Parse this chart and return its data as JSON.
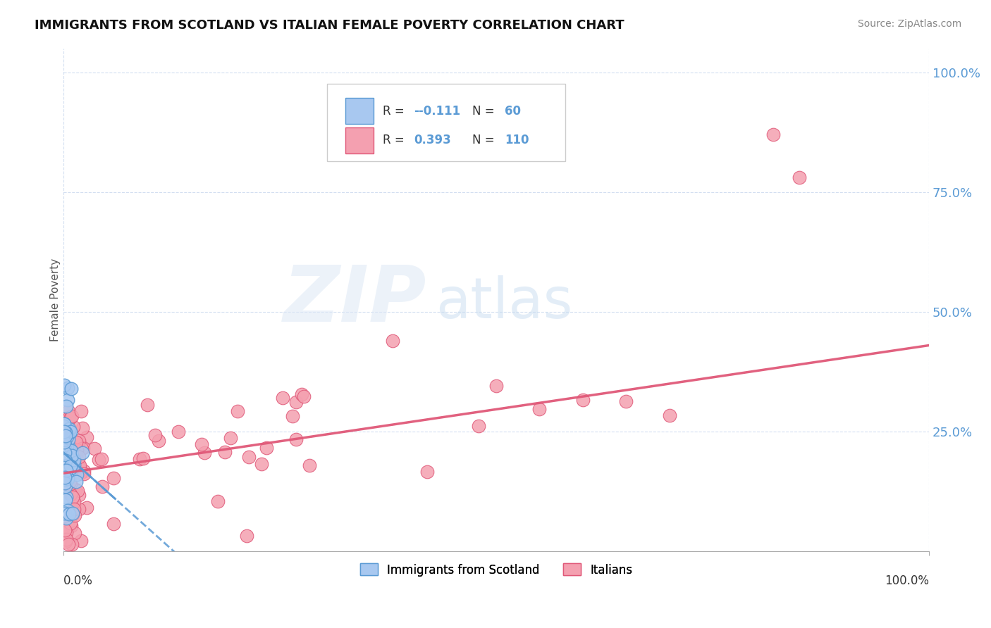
{
  "title": "IMMIGRANTS FROM SCOTLAND VS ITALIAN FEMALE POVERTY CORRELATION CHART",
  "source": "Source: ZipAtlas.com",
  "ylabel": "Female Poverty",
  "legend1_r": "-0.111",
  "legend1_n": "60",
  "legend2_r": "0.393",
  "legend2_n": "110",
  "color_scotland": "#a8c8f0",
  "color_scotland_edge": "#5a9ad4",
  "color_italy": "#f4a0b0",
  "color_italy_edge": "#e05878",
  "color_italy_line": "#e05878",
  "color_scotland_line": "#5a9ad4",
  "background_color": "#ffffff",
  "xlim": [
    0.0,
    1.0
  ],
  "ylim": [
    0.0,
    1.05
  ],
  "yticks": [
    0.0,
    0.25,
    0.5,
    0.75,
    1.0
  ],
  "ytick_labels": [
    "",
    "25.0%",
    "50.0%",
    "75.0%",
    "100.0%"
  ]
}
